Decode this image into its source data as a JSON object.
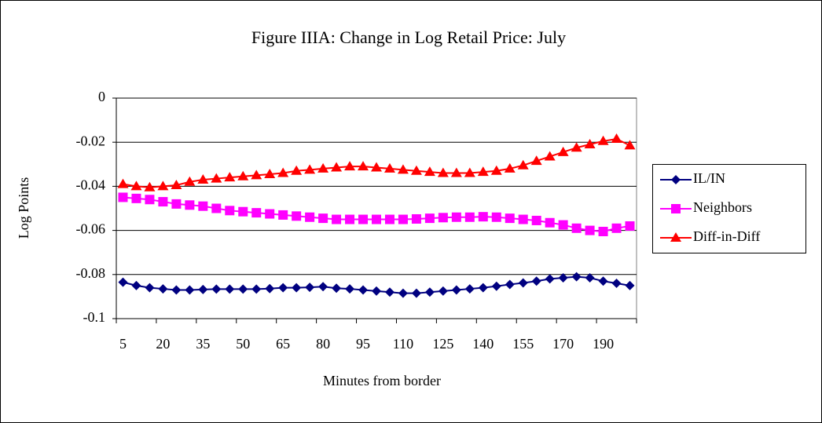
{
  "chart_data": {
    "type": "line",
    "title": "Figure IIIA:  Change in Log Retail Price:  July",
    "x_label": "Minutes from border",
    "y_label": "Log Points",
    "categories": [
      "5",
      null,
      null,
      "20",
      null,
      null,
      "35",
      null,
      null,
      "50",
      null,
      null,
      "65",
      null,
      null,
      "80",
      null,
      null,
      "95",
      null,
      null,
      "110",
      null,
      null,
      "125",
      null,
      null,
      "140",
      null,
      null,
      "155",
      null,
      null,
      "170",
      null,
      null,
      "190",
      null,
      null
    ],
    "series": [
      {
        "name": "IL/IN",
        "color": "#000080",
        "marker": "diamond",
        "values": [
          -0.0835,
          -0.085,
          -0.086,
          -0.0865,
          -0.087,
          -0.087,
          -0.0868,
          -0.0866,
          -0.0866,
          -0.0866,
          -0.0866,
          -0.0864,
          -0.086,
          -0.086,
          -0.0858,
          -0.0855,
          -0.0862,
          -0.0865,
          -0.087,
          -0.0875,
          -0.088,
          -0.0885,
          -0.0885,
          -0.088,
          -0.0875,
          -0.087,
          -0.0865,
          -0.086,
          -0.0853,
          -0.0845,
          -0.0838,
          -0.083,
          -0.082,
          -0.0815,
          -0.081,
          -0.0815,
          -0.083,
          -0.084,
          -0.085
        ]
      },
      {
        "name": "Neighbors",
        "color": "#ff00ff",
        "marker": "square",
        "values": [
          -0.045,
          -0.0455,
          -0.046,
          -0.047,
          -0.048,
          -0.0485,
          -0.049,
          -0.05,
          -0.051,
          -0.0515,
          -0.052,
          -0.0525,
          -0.053,
          -0.0535,
          -0.054,
          -0.0545,
          -0.055,
          -0.055,
          -0.055,
          -0.055,
          -0.055,
          -0.055,
          -0.0548,
          -0.0545,
          -0.0542,
          -0.054,
          -0.054,
          -0.0538,
          -0.054,
          -0.0545,
          -0.055,
          -0.0555,
          -0.0565,
          -0.0575,
          -0.059,
          -0.06,
          -0.0605,
          -0.059,
          -0.058
        ]
      },
      {
        "name": "Diff-in-Diff",
        "color": "#ff0000",
        "marker": "triangle",
        "values": [
          -0.039,
          -0.04,
          -0.0405,
          -0.04,
          -0.0395,
          -0.038,
          -0.037,
          -0.0365,
          -0.036,
          -0.0355,
          -0.035,
          -0.0345,
          -0.034,
          -0.033,
          -0.0325,
          -0.032,
          -0.0315,
          -0.031,
          -0.031,
          -0.0315,
          -0.032,
          -0.0325,
          -0.033,
          -0.0335,
          -0.034,
          -0.034,
          -0.034,
          -0.0335,
          -0.033,
          -0.032,
          -0.0305,
          -0.0285,
          -0.0265,
          -0.0245,
          -0.0225,
          -0.021,
          -0.0195,
          -0.0185,
          -0.0215
        ]
      }
    ],
    "ylim": [
      -0.1,
      0
    ],
    "yticks": [
      0,
      -0.02,
      -0.04,
      -0.06,
      -0.08,
      -0.1
    ],
    "grid": true,
    "legend": "right"
  }
}
